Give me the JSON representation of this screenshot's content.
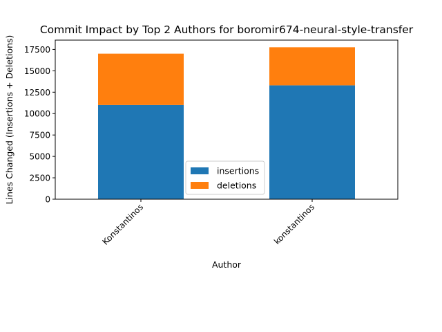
{
  "chart_data": {
    "type": "bar",
    "stacked": true,
    "title": "Commit Impact by Top 2 Authors for boromir674-neural-style-transfer",
    "xlabel": "Author",
    "ylabel": "Lines Changed (Insertions + Deletions)",
    "categories": [
      "Konstantinos",
      "konstantinos"
    ],
    "series": [
      {
        "name": "insertions",
        "values": [
          11000,
          13300
        ],
        "color": "#1f77b4"
      },
      {
        "name": "deletions",
        "values": [
          6000,
          4450
        ],
        "color": "#ff7f0e"
      }
    ],
    "ylim": [
      0,
      18585
    ],
    "yticks": [
      0,
      2500,
      5000,
      7500,
      10000,
      12500,
      15000,
      17500
    ],
    "ytick_labels": [
      "0",
      "2500",
      "5000",
      "7500",
      "10000",
      "12500",
      "15000",
      "17500"
    ],
    "grid": false,
    "legend_position": "lower-center"
  }
}
